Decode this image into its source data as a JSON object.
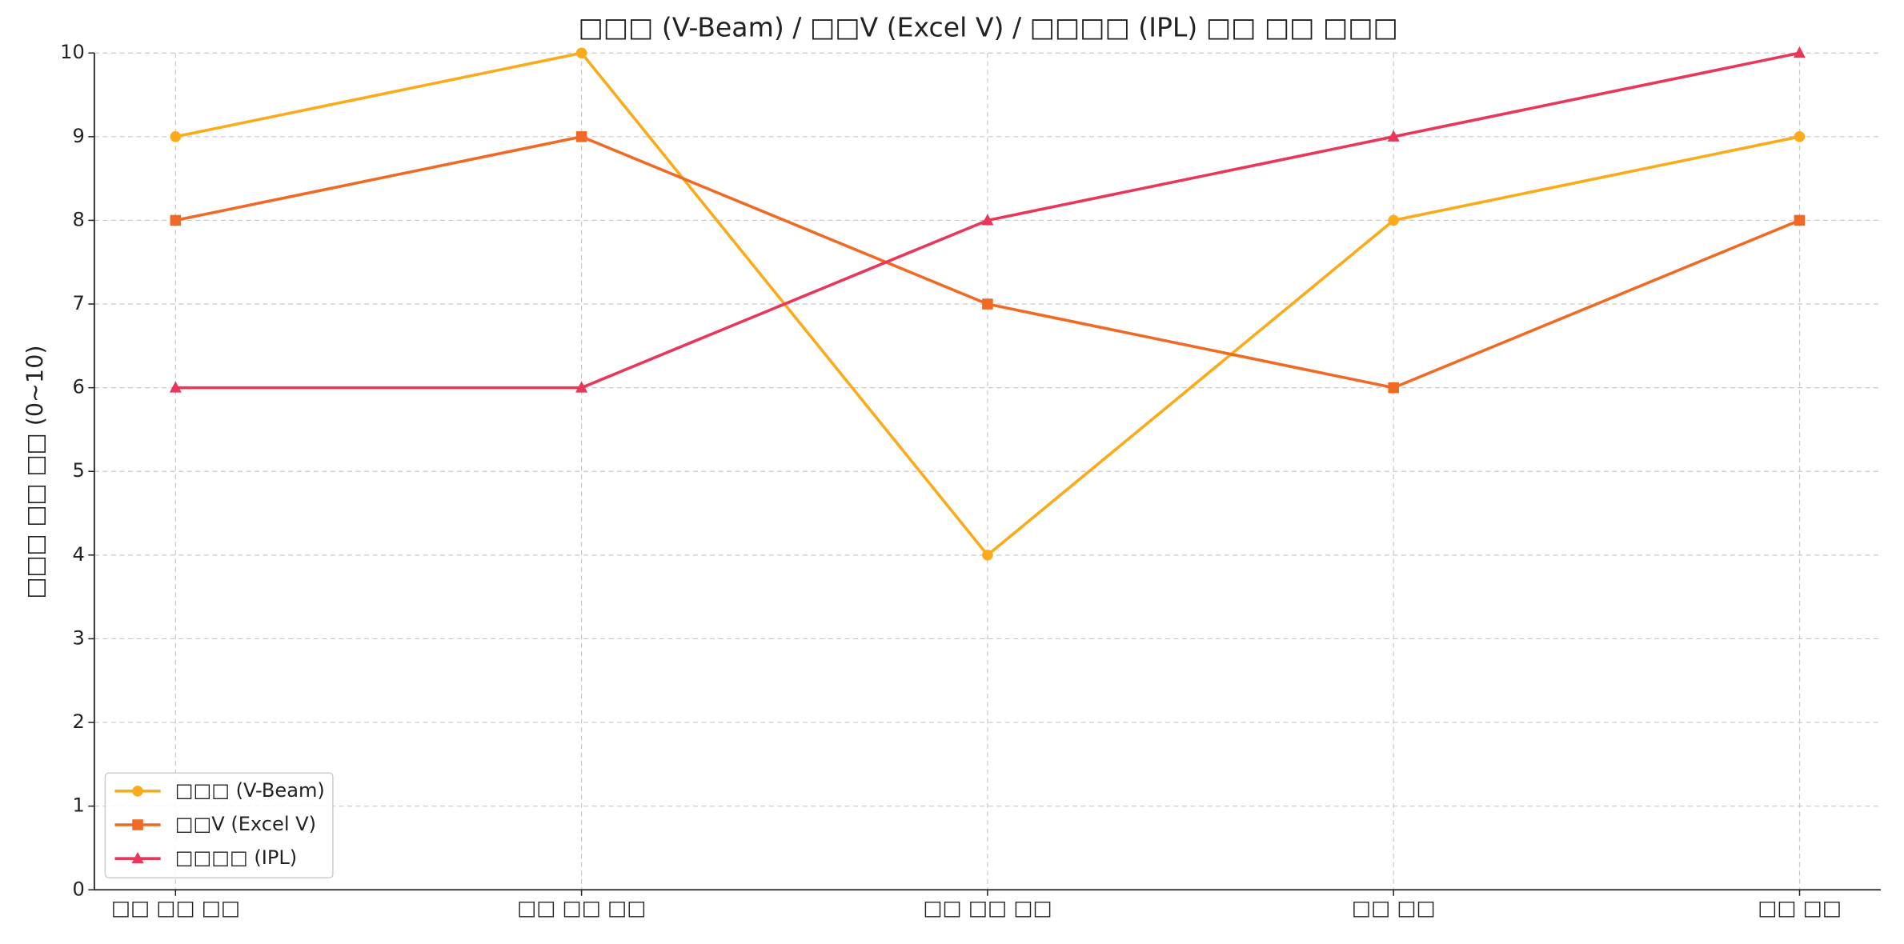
{
  "chart_data": {
    "type": "line",
    "title": "□□□ (V-Beam) / □□V (Excel V) / □□□□ (IPL) □□ □□ □□□",
    "y_label": "□□□ □□ □□ (0~10)",
    "categories": [
      "□□ □□ □□",
      "□□ □□ □□",
      "□□ □□ □□",
      "□□ □□",
      "□□ □□"
    ],
    "series": [
      {
        "name": "□□□ (V-Beam)",
        "color": "#fbaa1a",
        "marker": "circle",
        "values": [
          9,
          10,
          4,
          8,
          9
        ]
      },
      {
        "name": "□□V (Excel V)",
        "color": "#f06a25",
        "marker": "square",
        "values": [
          8,
          9,
          7,
          6,
          8
        ]
      },
      {
        "name": "□□□□ (IPL)",
        "color": "#e8375a",
        "marker": "triangle",
        "values": [
          6,
          6,
          8,
          9,
          10
        ]
      }
    ],
    "ylim": [
      0,
      10
    ],
    "yticks": [
      0,
      1,
      2,
      3,
      4,
      5,
      6,
      7,
      8,
      9,
      10
    ],
    "grid": true,
    "legend": "lower left"
  }
}
